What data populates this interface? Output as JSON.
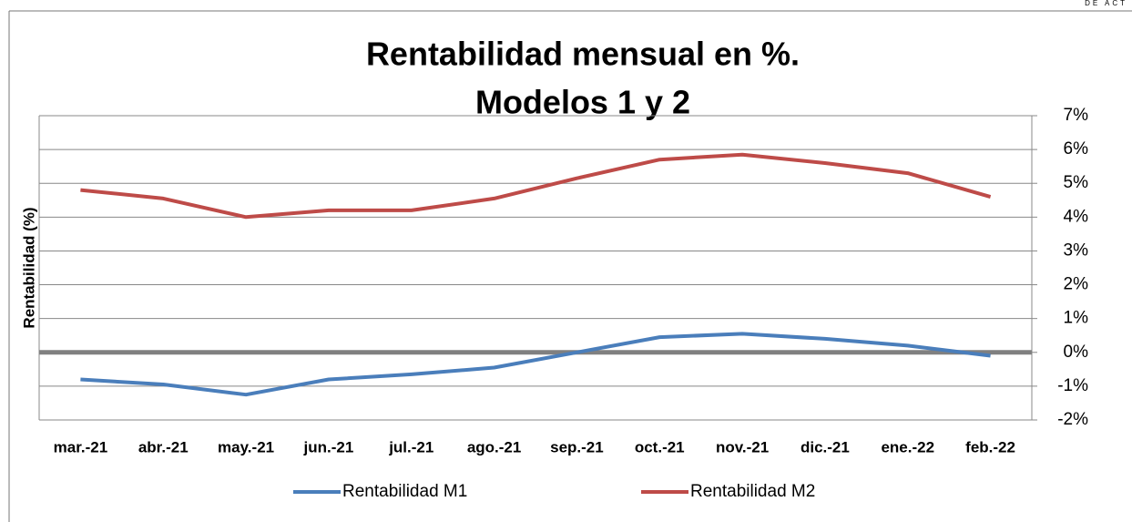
{
  "chart_data": {
    "type": "line",
    "title": [
      "Rentabilidad mensual en %.",
      "Modelos 1 y 2"
    ],
    "annotation": "DE ACT",
    "y_label": "Rentabilidad (%)",
    "categories": [
      "mar.-21",
      "abr.-21",
      "may.-21",
      "jun.-21",
      "jul.-21",
      "ago.-21",
      "sep.-21",
      "oct.-21",
      "nov.-21",
      "dic.-21",
      "ene.-22",
      "feb.-22"
    ],
    "series": [
      {
        "name": "Rentabilidad M1",
        "color": "#4a7ebb",
        "values": [
          -0.8,
          -0.95,
          -1.25,
          -0.8,
          -0.65,
          -0.45,
          0.0,
          0.45,
          0.55,
          0.4,
          0.2,
          -0.1
        ]
      },
      {
        "name": "Rentabilidad M2",
        "color": "#be4b48",
        "values": [
          4.8,
          4.55,
          4.0,
          4.2,
          4.2,
          4.55,
          5.15,
          5.7,
          5.85,
          5.6,
          5.3,
          4.6
        ]
      }
    ],
    "ylim": [
      -2,
      7
    ],
    "yticks": [
      {
        "value": -2,
        "label": "-2%"
      },
      {
        "value": -1,
        "label": "-1%"
      },
      {
        "value": 0,
        "label": "0%"
      },
      {
        "value": 1,
        "label": "1%"
      },
      {
        "value": 2,
        "label": "2%"
      },
      {
        "value": 3,
        "label": "3%"
      },
      {
        "value": 4,
        "label": "4%"
      },
      {
        "value": 5,
        "label": "5%"
      },
      {
        "value": 6,
        "label": "6%"
      },
      {
        "value": 7,
        "label": "7%"
      }
    ],
    "y_axis_side": "right",
    "grid": true,
    "legend": "bottom"
  }
}
